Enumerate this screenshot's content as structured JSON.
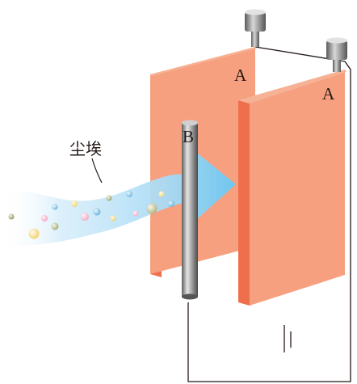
{
  "labels": {
    "plate_left": "A",
    "plate_right": "A",
    "rod": "B",
    "dust": "尘埃"
  },
  "colors": {
    "plate_front": "#f7a07f",
    "plate_side": "#ef6f4d",
    "rod": "#9a9a9a",
    "flow_arrow": "#5ec1ec",
    "wire": "#231815"
  },
  "particles": [
    {
      "color": "#8f9a5c"
    },
    {
      "color": "#f2d26a"
    },
    {
      "color": "#f2a5c0"
    },
    {
      "color": "#64b5dd"
    },
    {
      "color": "#a2a96f"
    },
    {
      "color": "#f0d46a"
    },
    {
      "color": "#f3a8c4"
    },
    {
      "color": "#5cb2de"
    },
    {
      "color": "#9aa36a"
    },
    {
      "color": "#eed06b"
    },
    {
      "color": "#67b8e2"
    },
    {
      "color": "#f5aac5"
    },
    {
      "color": "#b3b27a"
    },
    {
      "color": "#f1d66e"
    },
    {
      "color": "#5fb4df"
    }
  ]
}
